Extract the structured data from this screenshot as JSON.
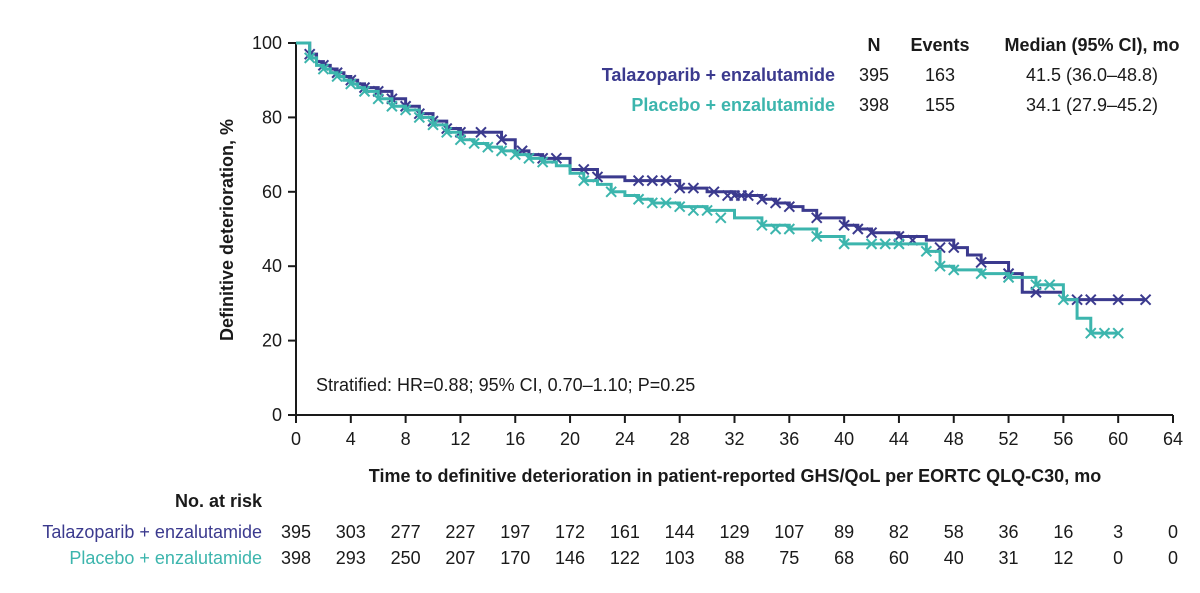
{
  "colors": {
    "talazoparib": "#3b3a8e",
    "placebo": "#3cb5ad",
    "axis": "#1a1a1a"
  },
  "chart_data": {
    "type": "line",
    "step": true,
    "xlabel": "Time to definitive deterioration in patient-reported GHS/QoL per EORTC QLQ-C30, mo",
    "ylabel": "Definitive deterioration, %",
    "xlim": [
      0,
      64
    ],
    "ylim": [
      0,
      100
    ],
    "xticks": [
      0,
      4,
      8,
      12,
      16,
      20,
      24,
      28,
      32,
      36,
      40,
      44,
      48,
      52,
      56,
      60,
      64
    ],
    "yticks": [
      0,
      20,
      40,
      60,
      80,
      100
    ],
    "grid": false,
    "annotation": "Stratified: HR=0.88; 95% CI, 0.70–1.10; P=0.25",
    "legend": {
      "headers": [
        "N",
        "Events",
        "Median (95% CI), mo"
      ],
      "rows": [
        {
          "name": "Talazoparib + enzalutamide",
          "n": "395",
          "events": "163",
          "median": "41.5 (36.0–48.8)",
          "color_key": "talazoparib"
        },
        {
          "name": "Placebo + enzalutamide",
          "n": "398",
          "events": "155",
          "median": "34.1 (27.9–45.2)",
          "color_key": "placebo"
        }
      ]
    },
    "series": [
      {
        "name": "Talazoparib + enzalutamide",
        "color_key": "talazoparib",
        "x": [
          0,
          1,
          1.5,
          2,
          2.5,
          3,
          3.5,
          4,
          4.5,
          5,
          6,
          7,
          8,
          9,
          10,
          11,
          12,
          13,
          14,
          15,
          16,
          17,
          18,
          19,
          20,
          21,
          22,
          23,
          24,
          26,
          28,
          30,
          32,
          33,
          34,
          35,
          36,
          37,
          38,
          40,
          41,
          42,
          44,
          46,
          48,
          49,
          50,
          52,
          53,
          56,
          58,
          62
        ],
        "y": [
          100,
          97,
          95,
          94,
          93,
          92,
          91,
          90,
          89,
          88,
          87,
          85,
          83,
          81,
          79,
          77,
          76,
          76,
          76,
          74,
          71,
          70,
          69,
          69,
          66,
          66,
          64,
          64,
          63,
          63,
          61,
          60,
          59,
          59,
          58,
          57,
          56,
          55,
          53,
          51,
          50,
          49,
          48,
          47,
          45,
          43,
          41,
          38,
          33,
          31,
          31,
          31
        ],
        "censored": [
          [
            1,
            97
          ],
          [
            2,
            94
          ],
          [
            3,
            92
          ],
          [
            4,
            90
          ],
          [
            5,
            88
          ],
          [
            6,
            87
          ],
          [
            7,
            85
          ],
          [
            8,
            83
          ],
          [
            9,
            81
          ],
          [
            10,
            79
          ],
          [
            11,
            77
          ],
          [
            12,
            76
          ],
          [
            13.5,
            76
          ],
          [
            15,
            74
          ],
          [
            16.5,
            71
          ],
          [
            18,
            69
          ],
          [
            19,
            69
          ],
          [
            21,
            66
          ],
          [
            22,
            64
          ],
          [
            25,
            63
          ],
          [
            26,
            63
          ],
          [
            27,
            63
          ],
          [
            28,
            61
          ],
          [
            29,
            61
          ],
          [
            30.5,
            60
          ],
          [
            31.5,
            59
          ],
          [
            32,
            59
          ],
          [
            32.5,
            59
          ],
          [
            33,
            59
          ],
          [
            34,
            58
          ],
          [
            35,
            57
          ],
          [
            36,
            56
          ],
          [
            38,
            53
          ],
          [
            40,
            51
          ],
          [
            41,
            50
          ],
          [
            42,
            49
          ],
          [
            44,
            48
          ],
          [
            45,
            47
          ],
          [
            47,
            45
          ],
          [
            48,
            45
          ],
          [
            50,
            41
          ],
          [
            52,
            38
          ],
          [
            54,
            33
          ],
          [
            57,
            31
          ],
          [
            58,
            31
          ],
          [
            60,
            31
          ],
          [
            62,
            31
          ]
        ]
      },
      {
        "name": "Placebo + enzalutamide",
        "color_key": "placebo",
        "x": [
          0,
          1,
          1.5,
          2,
          2.5,
          3,
          3.5,
          4,
          4.5,
          5,
          6,
          7,
          8,
          9,
          10,
          11,
          12,
          13,
          14,
          15,
          16,
          17,
          18,
          19,
          20,
          21,
          22,
          23,
          24,
          25,
          26,
          27,
          28,
          30,
          32,
          34,
          36,
          38,
          40,
          42,
          44,
          46,
          47,
          48,
          50,
          52,
          54,
          56,
          57,
          58,
          60
        ],
        "y": [
          100,
          96,
          94,
          93,
          92,
          91,
          90,
          89,
          88,
          87,
          85,
          83,
          82,
          80,
          78,
          76,
          74,
          73,
          72,
          71,
          70,
          69,
          68,
          67,
          65,
          63,
          62,
          60,
          59,
          58,
          57,
          57,
          56,
          55,
          53,
          51,
          50,
          48,
          46,
          46,
          46,
          44,
          40,
          39,
          38,
          37,
          35,
          31,
          26,
          22,
          22
        ],
        "censored": [
          [
            1,
            96
          ],
          [
            2,
            93
          ],
          [
            3,
            91
          ],
          [
            4,
            89
          ],
          [
            5,
            87
          ],
          [
            6,
            85
          ],
          [
            7,
            83
          ],
          [
            8,
            82
          ],
          [
            9,
            80
          ],
          [
            10,
            78
          ],
          [
            11,
            76
          ],
          [
            12,
            74
          ],
          [
            13,
            73
          ],
          [
            14,
            72
          ],
          [
            15,
            71
          ],
          [
            16,
            70
          ],
          [
            17,
            69
          ],
          [
            18,
            68
          ],
          [
            21,
            63
          ],
          [
            23,
            60
          ],
          [
            25,
            58
          ],
          [
            26,
            57
          ],
          [
            27,
            57
          ],
          [
            28,
            56
          ],
          [
            29,
            55
          ],
          [
            30,
            55
          ],
          [
            31,
            53
          ],
          [
            34,
            51
          ],
          [
            35,
            50
          ],
          [
            36,
            50
          ],
          [
            38,
            48
          ],
          [
            40,
            46
          ],
          [
            42,
            46
          ],
          [
            43,
            46
          ],
          [
            44,
            46
          ],
          [
            46,
            44
          ],
          [
            47,
            40
          ],
          [
            48,
            39
          ],
          [
            50,
            38
          ],
          [
            52,
            37
          ],
          [
            54,
            35
          ],
          [
            55,
            35
          ],
          [
            56,
            31
          ],
          [
            58,
            22
          ],
          [
            59,
            22
          ],
          [
            60,
            22
          ]
        ]
      }
    ],
    "risk_table": {
      "title": "No. at risk",
      "rows": [
        {
          "name": "Talazoparib + enzalutamide",
          "color_key": "talazoparib",
          "values": [
            "395",
            "303",
            "277",
            "227",
            "197",
            "172",
            "161",
            "144",
            "129",
            "107",
            "89",
            "82",
            "58",
            "36",
            "16",
            "3",
            "0"
          ]
        },
        {
          "name": "Placebo + enzalutamide",
          "color_key": "placebo",
          "values": [
            "398",
            "293",
            "250",
            "207",
            "170",
            "146",
            "122",
            "103",
            "88",
            "75",
            "68",
            "60",
            "40",
            "31",
            "12",
            "0",
            "0"
          ]
        }
      ]
    }
  }
}
